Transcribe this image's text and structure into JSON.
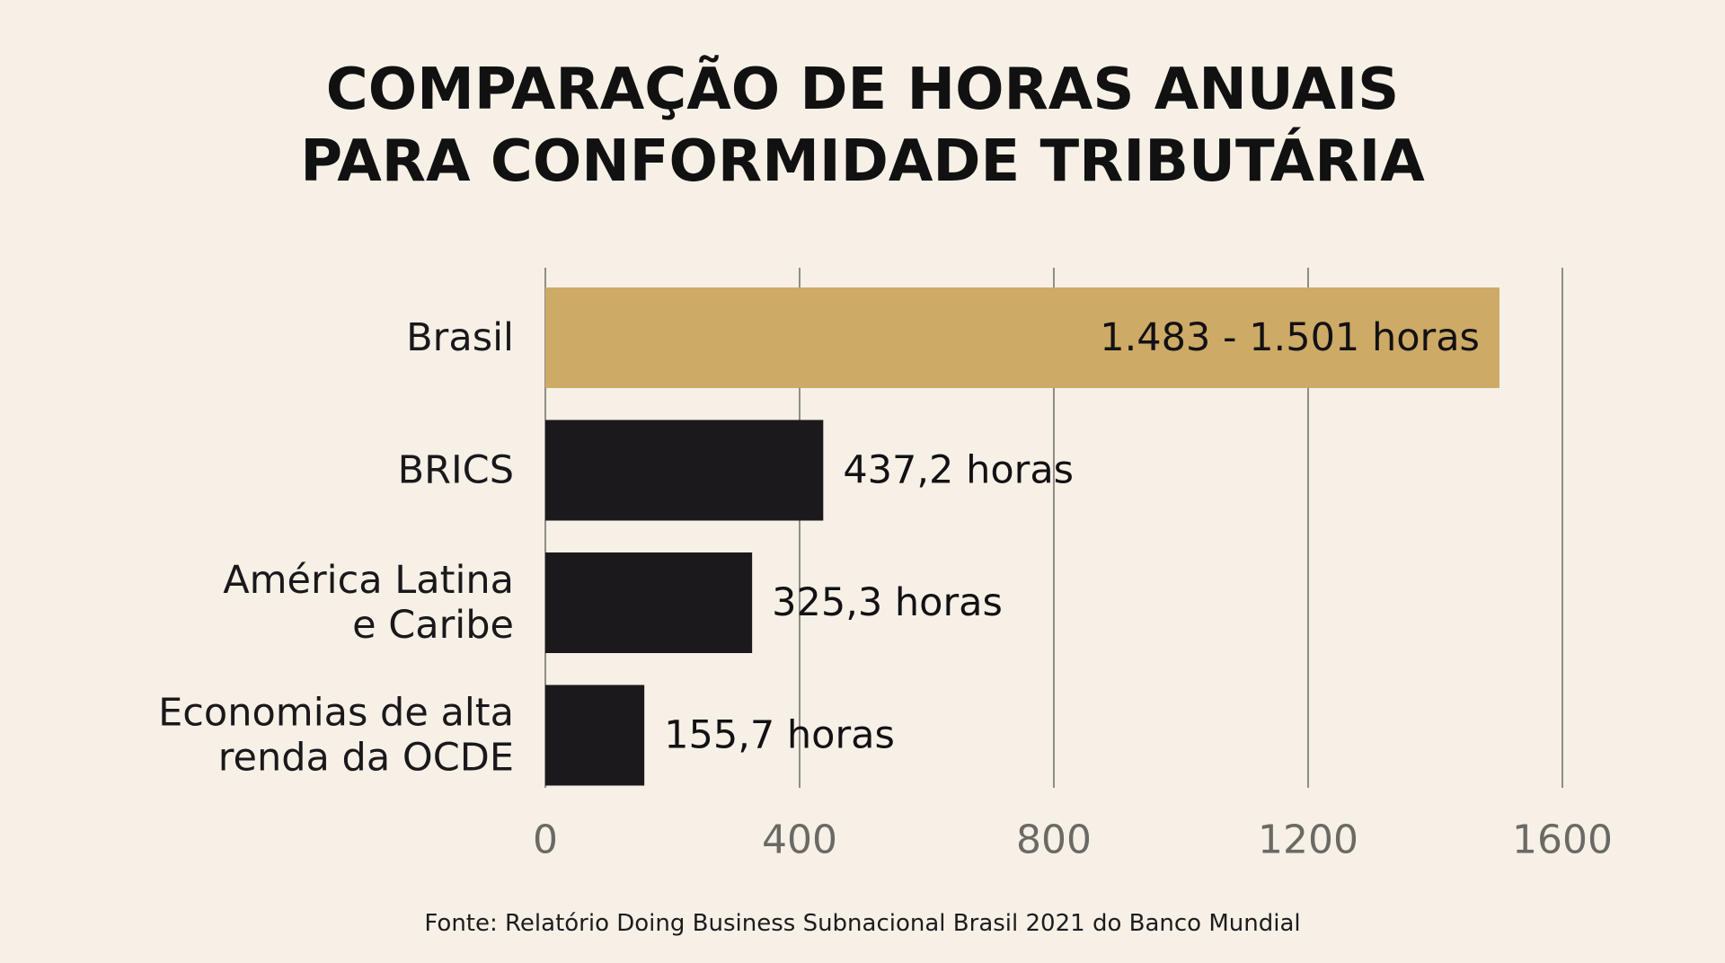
{
  "chart_data": {
    "type": "bar",
    "orientation": "horizontal",
    "title_lines": [
      "COMPARAÇÃO DE HORAS ANUAIS",
      "PARA CONFORMIDADE TRIBUTÁRIA"
    ],
    "categories": [
      [
        "Brasil"
      ],
      [
        "BRICS"
      ],
      [
        "América Latina",
        "e Caribe"
      ],
      [
        "Economias de alta",
        "renda da OCDE"
      ]
    ],
    "values": [
      1501,
      437.2,
      325.3,
      155.7
    ],
    "data_labels": [
      "1.483 - 1.501 horas",
      "437,2 horas",
      "325,3 horas",
      "155,7 horas"
    ],
    "colors": [
      "#cdaa66",
      "#1b191b",
      "#1b191b",
      "#1b191b"
    ],
    "xlim": [
      0,
      1600
    ],
    "xticks": [
      0,
      400,
      800,
      1200,
      1600
    ],
    "xtick_labels": [
      "0",
      "400",
      "800",
      "1200",
      "1600"
    ],
    "grid": true,
    "legend": false
  },
  "source": "Fonte: Relatório Doing Business Subnacional Brasil 2021 do Banco Mundial"
}
